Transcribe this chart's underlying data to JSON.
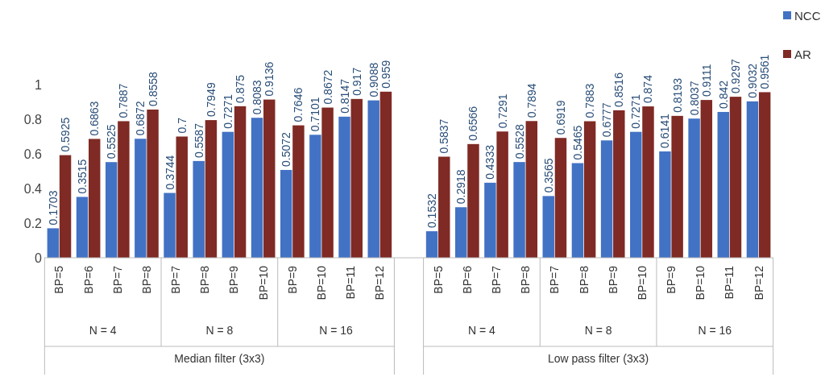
{
  "chart_data": {
    "type": "bar",
    "categories": [
      "BP=5",
      "BP=6",
      "BP=7",
      "BP=8",
      "BP=7",
      "BP=8",
      "BP=9",
      "BP=10",
      "BP=9",
      "BP=10",
      "BP=11",
      "BP=12",
      null,
      "BP=5",
      "BP=6",
      "BP=7",
      "BP=8",
      "BP=7",
      "BP=8",
      "BP=9",
      "BP=10",
      "BP=9",
      "BP=10",
      "BP=11",
      "BP=12"
    ],
    "series": [
      {
        "name": "NCC",
        "color": "#4272c4",
        "values": [
          0.1703,
          0.3515,
          0.5525,
          0.6872,
          0.3744,
          0.5587,
          0.7271,
          0.8083,
          0.5072,
          0.7101,
          0.8147,
          0.9088,
          null,
          0.1532,
          0.2918,
          0.4333,
          0.5528,
          0.3565,
          0.5465,
          0.6777,
          0.7271,
          0.6141,
          0.8037,
          0.842,
          0.9032
        ]
      },
      {
        "name": "AR",
        "color": "#7f2a24",
        "values": [
          0.5925,
          0.6863,
          0.7887,
          0.8558,
          0.7,
          0.7949,
          0.875,
          0.9136,
          0.7646,
          0.8672,
          0.917,
          0.959,
          null,
          0.5837,
          0.6566,
          0.7291,
          0.7894,
          0.6919,
          0.7883,
          0.8516,
          0.874,
          0.8193,
          0.9111,
          0.9297,
          0.9561
        ]
      }
    ],
    "ylim": [
      0,
      1
    ],
    "yticks": [
      0,
      0.2,
      0.4,
      0.6,
      0.8,
      1
    ],
    "data_labels": true,
    "legend": "top right",
    "grid": false,
    "annotations": [
      "N = 4",
      "N = 8",
      "N = 16",
      "Median filter (3x3)",
      "N = 4",
      "N = 8",
      "N = 16",
      "Low pass filter (3x3)"
    ]
  }
}
